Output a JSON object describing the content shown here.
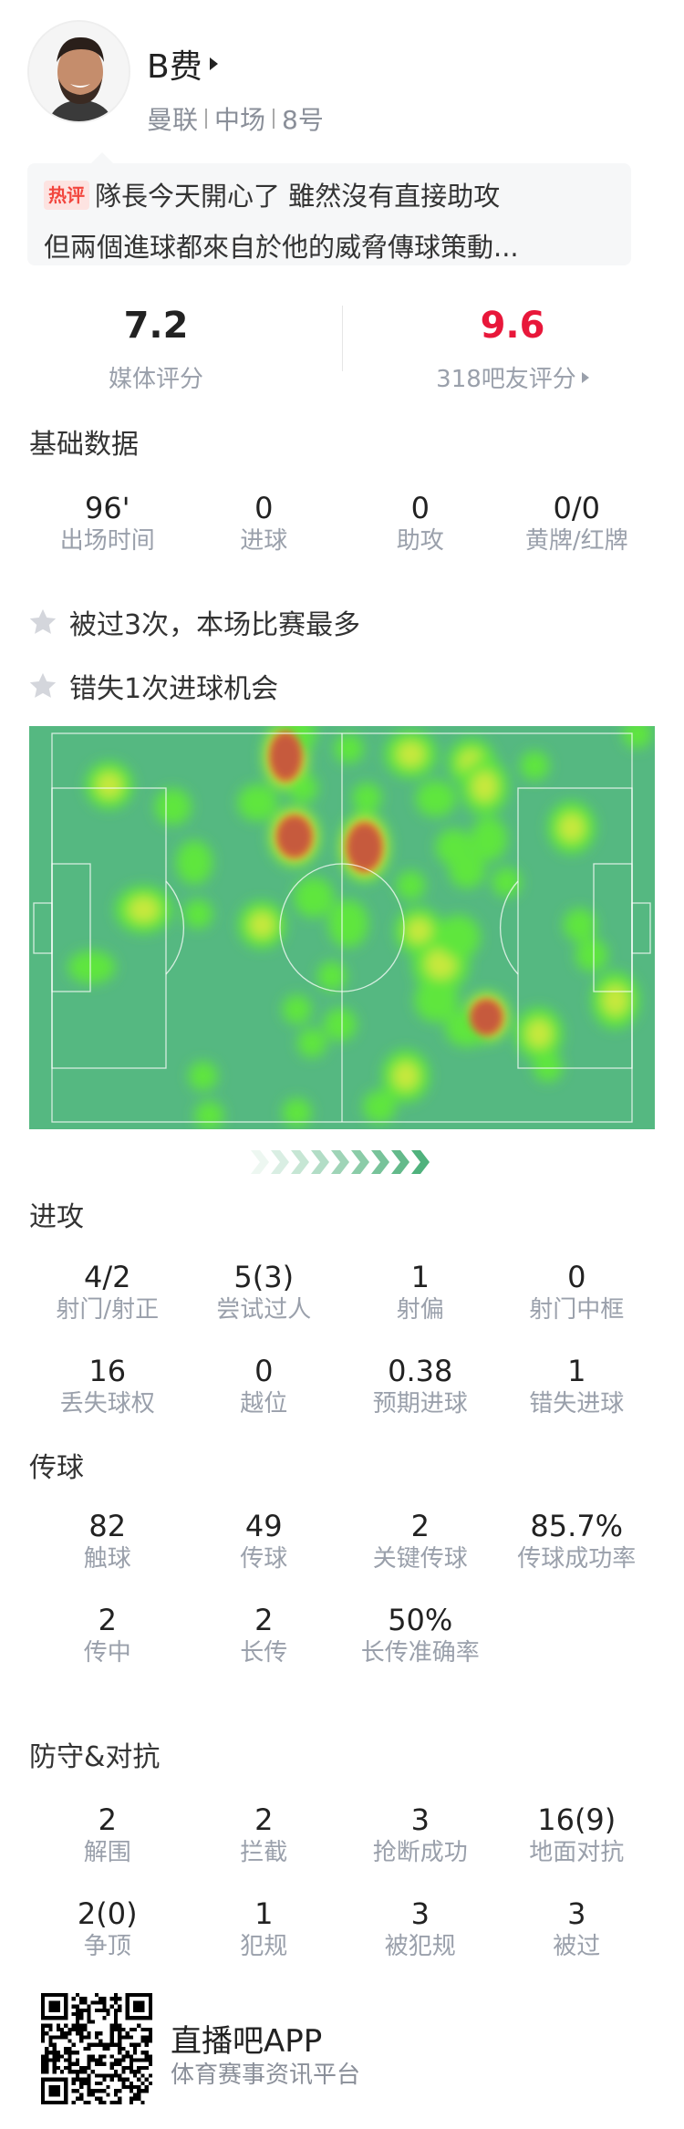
{
  "player": {
    "name": "B费",
    "team": "曼联",
    "position": "中场",
    "number": "8号"
  },
  "comment": {
    "tag": "热评",
    "line1": "隊長今天開心了 雖然沒有直接助攻",
    "line2": "但兩個進球都來自於他的威脅傳球策動..."
  },
  "ratings": {
    "media_value": "7.2",
    "media_label": "媒体评分",
    "fans_value": "9.6",
    "fans_label": "318吧友评分",
    "fans_color": "#e8173a"
  },
  "basic": {
    "title": "基础数据",
    "stats": [
      {
        "value": "96'",
        "label": "出场时间"
      },
      {
        "value": "0",
        "label": "进球"
      },
      {
        "value": "0",
        "label": "助攻"
      },
      {
        "value": "0/0",
        "label": "黄牌/红牌"
      }
    ]
  },
  "highlights": [
    "被过3次，本场比赛最多",
    "错失1次进球机会"
  ],
  "heatmap": {
    "pitch_color": "#55b881",
    "arrow_color": "#4db07a"
  },
  "attack": {
    "title": "进攻",
    "stats": [
      {
        "value": "4/2",
        "label": "射门/射正"
      },
      {
        "value": "5(3)",
        "label": "尝试过人"
      },
      {
        "value": "1",
        "label": "射偏"
      },
      {
        "value": "0",
        "label": "射门中框"
      },
      {
        "value": "16",
        "label": "丢失球权"
      },
      {
        "value": "0",
        "label": "越位"
      },
      {
        "value": "0.38",
        "label": "预期进球"
      },
      {
        "value": "1",
        "label": "错失进球"
      }
    ]
  },
  "passing": {
    "title": "传球",
    "stats": [
      {
        "value": "82",
        "label": "触球"
      },
      {
        "value": "49",
        "label": "传球"
      },
      {
        "value": "2",
        "label": "关键传球"
      },
      {
        "value": "85.7%",
        "label": "传球成功率"
      },
      {
        "value": "2",
        "label": "传中"
      },
      {
        "value": "2",
        "label": "长传"
      },
      {
        "value": "50%",
        "label": "长传准确率"
      }
    ]
  },
  "defense": {
    "title": "防守&对抗",
    "stats": [
      {
        "value": "2",
        "label": "解围"
      },
      {
        "value": "2",
        "label": "拦截"
      },
      {
        "value": "3",
        "label": "抢断成功"
      },
      {
        "value": "16(9)",
        "label": "地面对抗"
      },
      {
        "value": "2(0)",
        "label": "争顶"
      },
      {
        "value": "1",
        "label": "犯规"
      },
      {
        "value": "3",
        "label": "被犯规"
      },
      {
        "value": "3",
        "label": "被过"
      }
    ]
  },
  "footer": {
    "app_name": "直播吧APP",
    "slogan": "体育赛事资讯平台"
  }
}
